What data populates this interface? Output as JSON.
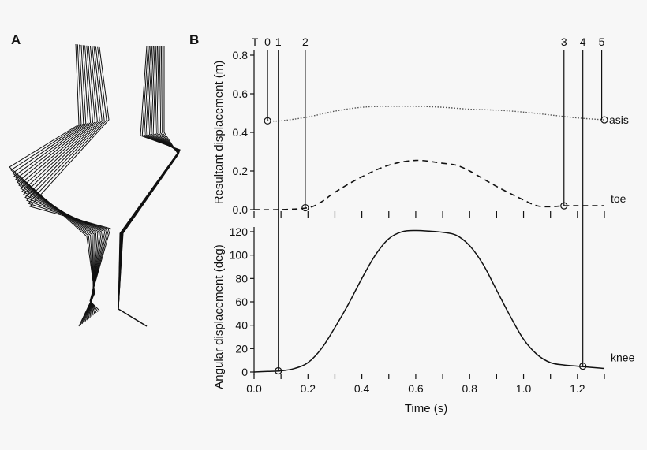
{
  "panels": {
    "a_label": "A",
    "b_label": "B"
  },
  "colors": {
    "ink": "#111111",
    "background": "#f7f7f7",
    "asis_line": "#555555"
  },
  "chart_data": [
    {
      "type": "line",
      "panel": "B-top",
      "title": "",
      "xlabel": "",
      "ylabel": "Resultant displacement (m)",
      "xlim": [
        0.0,
        1.3
      ],
      "ylim": [
        0.0,
        0.8
      ],
      "yticks": [
        0.0,
        0.2,
        0.4,
        0.6,
        0.8
      ],
      "ytick_labels": [
        "0.0",
        "0.2",
        "0.4",
        "0.6",
        "0.8"
      ],
      "grid": false,
      "series": [
        {
          "name": "asis",
          "style": "dotted",
          "x": [
            0.05,
            0.1,
            0.2,
            0.3,
            0.4,
            0.5,
            0.6,
            0.7,
            0.8,
            0.9,
            1.0,
            1.1,
            1.2,
            1.3
          ],
          "y": [
            0.46,
            0.46,
            0.48,
            0.51,
            0.53,
            0.535,
            0.535,
            0.53,
            0.52,
            0.515,
            0.505,
            0.49,
            0.475,
            0.465
          ],
          "marker_x": [
            0.05,
            1.3
          ],
          "marker_y": [
            0.46,
            0.465
          ]
        },
        {
          "name": "toe",
          "style": "dashed",
          "x": [
            0.0,
            0.1,
            0.2,
            0.25,
            0.3,
            0.4,
            0.5,
            0.6,
            0.7,
            0.75,
            0.8,
            0.9,
            1.0,
            1.05,
            1.1,
            1.15,
            1.2,
            1.3
          ],
          "y": [
            0.0,
            0.0,
            0.01,
            0.04,
            0.09,
            0.17,
            0.23,
            0.255,
            0.24,
            0.23,
            0.2,
            0.12,
            0.05,
            0.02,
            0.015,
            0.02,
            0.02,
            0.02
          ],
          "marker_x": [
            0.19,
            1.15
          ],
          "marker_y": [
            0.01,
            0.02
          ]
        }
      ]
    },
    {
      "type": "line",
      "panel": "B-bottom",
      "title": "",
      "xlabel": "Time (s)",
      "ylabel": "Angular displacement (deg)",
      "xlim": [
        0.0,
        1.3
      ],
      "ylim": [
        0,
        120
      ],
      "xticks": [
        0.0,
        0.2,
        0.4,
        0.6,
        0.8,
        1.0,
        1.2
      ],
      "xtick_labels": [
        "0.0",
        "0.2",
        "0.4",
        "0.6",
        "0.8",
        "1.0",
        "1.2"
      ],
      "yticks": [
        0,
        20,
        40,
        60,
        80,
        100,
        120
      ],
      "ytick_labels": [
        "0",
        "20",
        "40",
        "60",
        "80",
        "100",
        "120"
      ],
      "grid": false,
      "series": [
        {
          "name": "knee",
          "style": "solid",
          "x": [
            0.0,
            0.05,
            0.1,
            0.15,
            0.2,
            0.25,
            0.3,
            0.35,
            0.4,
            0.45,
            0.5,
            0.55,
            0.6,
            0.65,
            0.7,
            0.75,
            0.8,
            0.85,
            0.9,
            0.95,
            1.0,
            1.05,
            1.1,
            1.15,
            1.2,
            1.25,
            1.3
          ],
          "y": [
            0,
            0.5,
            1,
            3,
            8,
            20,
            38,
            58,
            80,
            100,
            114,
            120,
            121,
            120.5,
            119.5,
            117,
            108,
            92,
            70,
            48,
            28,
            15,
            8,
            6,
            5,
            4,
            3
          ],
          "marker_x": [
            0.09,
            1.22
          ],
          "marker_y": [
            1,
            5
          ]
        }
      ]
    }
  ],
  "events": {
    "labels": [
      "T",
      "0",
      "1",
      "2",
      "3",
      "4",
      "5"
    ],
    "times": [
      0.0,
      0.05,
      0.09,
      0.19,
      1.15,
      1.22,
      1.29
    ],
    "drawn_line_indices": [
      1,
      2,
      3,
      4,
      5,
      6
    ]
  }
}
